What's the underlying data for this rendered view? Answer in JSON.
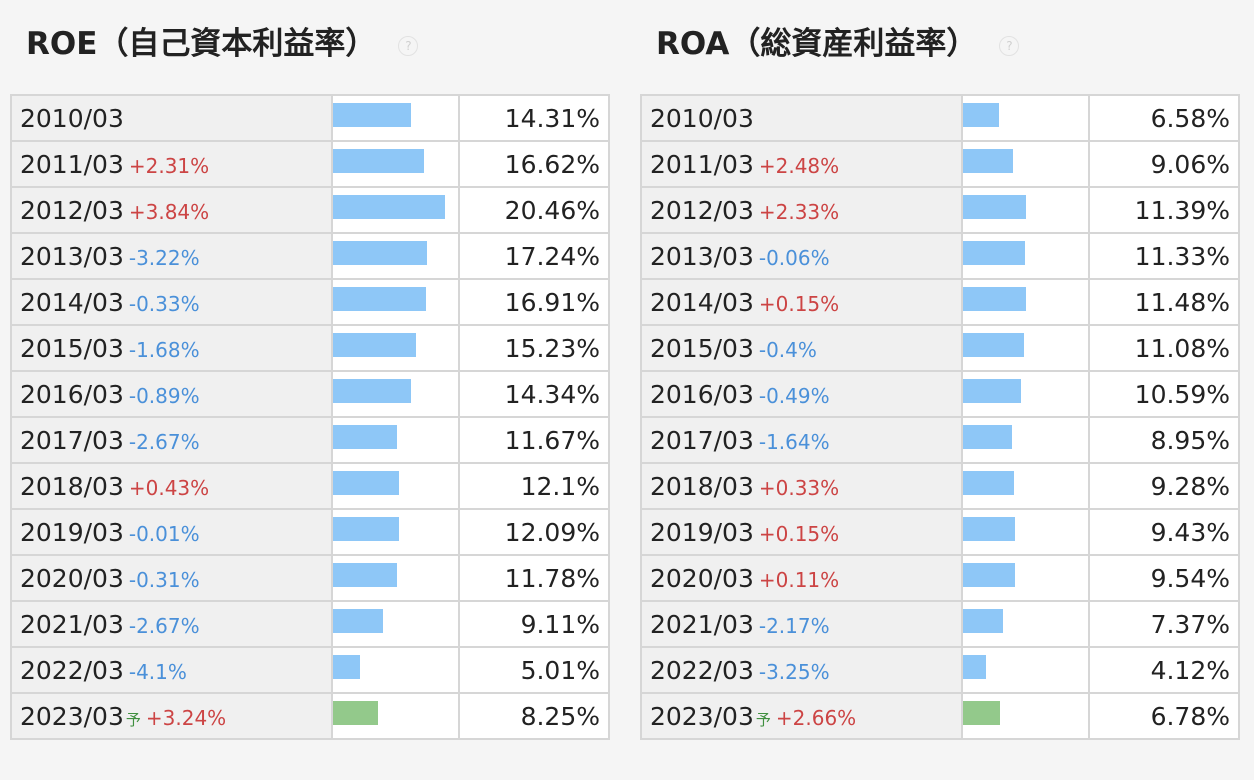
{
  "panels": [
    {
      "id": "roe",
      "title": "ROE（自己資本利益率）",
      "help_icon": "question-circle-icon",
      "rows": [
        {
          "period": "2010/03",
          "forecast": "",
          "change": "",
          "value": "14.31%",
          "pct": 14.31
        },
        {
          "period": "2011/03",
          "forecast": "",
          "change": "+2.31%",
          "value": "16.62%",
          "pct": 16.62
        },
        {
          "period": "2012/03",
          "forecast": "",
          "change": "+3.84%",
          "value": "20.46%",
          "pct": 20.46
        },
        {
          "period": "2013/03",
          "forecast": "",
          "change": "-3.22%",
          "value": "17.24%",
          "pct": 17.24
        },
        {
          "period": "2014/03",
          "forecast": "",
          "change": "-0.33%",
          "value": "16.91%",
          "pct": 16.91
        },
        {
          "period": "2015/03",
          "forecast": "",
          "change": "-1.68%",
          "value": "15.23%",
          "pct": 15.23
        },
        {
          "period": "2016/03",
          "forecast": "",
          "change": "-0.89%",
          "value": "14.34%",
          "pct": 14.34
        },
        {
          "period": "2017/03",
          "forecast": "",
          "change": "-2.67%",
          "value": "11.67%",
          "pct": 11.67
        },
        {
          "period": "2018/03",
          "forecast": "",
          "change": "+0.43%",
          "value": "12.1%",
          "pct": 12.1
        },
        {
          "period": "2019/03",
          "forecast": "",
          "change": "-0.01%",
          "value": "12.09%",
          "pct": 12.09
        },
        {
          "period": "2020/03",
          "forecast": "",
          "change": "-0.31%",
          "value": "11.78%",
          "pct": 11.78
        },
        {
          "period": "2021/03",
          "forecast": "",
          "change": "-2.67%",
          "value": "9.11%",
          "pct": 9.11
        },
        {
          "period": "2022/03",
          "forecast": "",
          "change": "-4.1%",
          "value": "5.01%",
          "pct": 5.01
        },
        {
          "period": "2023/03",
          "forecast": "予",
          "change": "+3.24%",
          "value": "8.25%",
          "pct": 8.25
        }
      ]
    },
    {
      "id": "roa",
      "title": "ROA（総資産利益率）",
      "help_icon": "question-circle-icon",
      "rows": [
        {
          "period": "2010/03",
          "forecast": "",
          "change": "",
          "value": "6.58%",
          "pct": 6.58
        },
        {
          "period": "2011/03",
          "forecast": "",
          "change": "+2.48%",
          "value": "9.06%",
          "pct": 9.06
        },
        {
          "period": "2012/03",
          "forecast": "",
          "change": "+2.33%",
          "value": "11.39%",
          "pct": 11.39
        },
        {
          "period": "2013/03",
          "forecast": "",
          "change": "-0.06%",
          "value": "11.33%",
          "pct": 11.33
        },
        {
          "period": "2014/03",
          "forecast": "",
          "change": "+0.15%",
          "value": "11.48%",
          "pct": 11.48
        },
        {
          "period": "2015/03",
          "forecast": "",
          "change": "-0.4%",
          "value": "11.08%",
          "pct": 11.08
        },
        {
          "period": "2016/03",
          "forecast": "",
          "change": "-0.49%",
          "value": "10.59%",
          "pct": 10.59
        },
        {
          "period": "2017/03",
          "forecast": "",
          "change": "-1.64%",
          "value": "8.95%",
          "pct": 8.95
        },
        {
          "period": "2018/03",
          "forecast": "",
          "change": "+0.33%",
          "value": "9.28%",
          "pct": 9.28
        },
        {
          "period": "2019/03",
          "forecast": "",
          "change": "+0.15%",
          "value": "9.43%",
          "pct": 9.43
        },
        {
          "period": "2020/03",
          "forecast": "",
          "change": "+0.11%",
          "value": "9.54%",
          "pct": 9.54
        },
        {
          "period": "2021/03",
          "forecast": "",
          "change": "-2.17%",
          "value": "7.37%",
          "pct": 7.37
        },
        {
          "period": "2022/03",
          "forecast": "",
          "change": "-3.25%",
          "value": "4.12%",
          "pct": 4.12
        },
        {
          "period": "2023/03",
          "forecast": "予",
          "change": "+2.66%",
          "value": "6.78%",
          "pct": 6.78
        }
      ]
    }
  ],
  "colors": {
    "bar": "#8ec7f7",
    "forecast_bar": "#93c98b",
    "change_up": "#cc4444",
    "change_down": "#4a90d9",
    "forecast_mark": "#3f8f3f"
  }
}
